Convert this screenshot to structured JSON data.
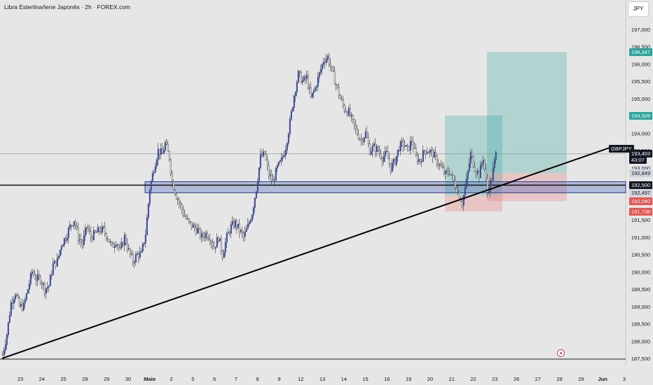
{
  "header": {
    "title": "Libra Esterlina/Iene Japonês · 2h · FOREX.com"
  },
  "price_axis": {
    "unit_label": "JPY",
    "ticks": [
      "197,000",
      "196,500",
      "196,000",
      "195,500",
      "195,000",
      "194,500",
      "194,000",
      "193,500",
      "193,000",
      "192,500",
      "192,000",
      "191,500",
      "191,000",
      "190,500",
      "190,000",
      "189,500",
      "189,000",
      "188,500",
      "188,000",
      "187,500"
    ],
    "tick_values": [
      197.0,
      196.5,
      196.0,
      195.5,
      195.0,
      194.5,
      194.0,
      193.5,
      193.0,
      192.5,
      192.0,
      191.5,
      191.0,
      190.5,
      190.0,
      189.5,
      189.0,
      188.5,
      188.0,
      187.5
    ],
    "labels": [
      {
        "text": "196,347",
        "value": 196.347,
        "bg": "#26a69a",
        "color": "#ffffff"
      },
      {
        "text": "194,509",
        "value": 194.509,
        "bg": "#26a69a",
        "color": "#ffffff"
      },
      {
        "text": "GBPJPY",
        "value": 193.55,
        "bg": "#131722",
        "color": "#ffffff"
      },
      {
        "text": "193,403",
        "value": 193.403,
        "bg": "#131722",
        "color": "#ffffff"
      },
      {
        "text": "43:07",
        "value": 193.23,
        "bg": "#131722",
        "color": "#ffffff"
      },
      {
        "text": "192,849",
        "value": 192.849,
        "bg": "#d1d4dc",
        "color": "#131722"
      },
      {
        "text": "192,500",
        "value": 192.5,
        "bg": "#131722",
        "color": "#ffffff"
      },
      {
        "text": "192,497",
        "value": 192.28,
        "bg": "#d1d4dc",
        "color": "#131722"
      },
      {
        "text": "192,040",
        "value": 192.04,
        "bg": "#ef5350",
        "color": "#ffffff"
      },
      {
        "text": "191,738",
        "value": 191.738,
        "bg": "#ef5350",
        "color": "#ffffff"
      }
    ]
  },
  "time_axis": {
    "ticks": [
      "23",
      "24",
      "25",
      "28",
      "29",
      "30",
      "Maio",
      "2",
      "5",
      "6",
      "7",
      "8",
      "9",
      "12",
      "13",
      "14",
      "15",
      "16",
      "19",
      "20",
      "21",
      "22",
      "23",
      "26",
      "27",
      "28",
      "29",
      "Jun",
      "3"
    ],
    "bold": [
      "Maio",
      "Jun"
    ]
  },
  "chart_data": {
    "type": "candlestick",
    "symbol": "GBPJPY",
    "title": "Libra Esterlina/Iene Japonês · 2h · FOREX.com",
    "ylim": [
      187.45,
      197.45
    ],
    "last_price": 193.403,
    "horizontal_levels": [
      192.5,
      193.403
    ],
    "zone": {
      "low": 192.28,
      "high": 192.6
    },
    "trendline": [
      [
        0,
        187.5
      ],
      [
        870,
        193.6
      ]
    ],
    "positions": [
      {
        "start": 632,
        "end": 714,
        "entry": 192.2,
        "target": 194.509,
        "stop": 191.738
      },
      {
        "start": 692,
        "end": 806,
        "entry": 192.849,
        "target": 196.347,
        "stop": 192.04
      }
    ],
    "colors": {
      "up": "#3a4a9a",
      "down": "#2a2a2a",
      "target_zone": "#26a69a",
      "stop_zone": "#ef5350",
      "zone_fill": "#4e66b8"
    },
    "path_anchors": [
      [
        0,
        187.6
      ],
      [
        6,
        188.2
      ],
      [
        12,
        189.1
      ],
      [
        18,
        189.4
      ],
      [
        24,
        189.0
      ],
      [
        30,
        189.0
      ],
      [
        36,
        189.5
      ],
      [
        42,
        190.0
      ],
      [
        48,
        189.8
      ],
      [
        54,
        189.8
      ],
      [
        60,
        189.5
      ],
      [
        66,
        189.6
      ],
      [
        72,
        190.2
      ],
      [
        78,
        190.3
      ],
      [
        84,
        190.8
      ],
      [
        90,
        191.0
      ],
      [
        96,
        191.3
      ],
      [
        102,
        191.5
      ],
      [
        108,
        191.0
      ],
      [
        114,
        190.8
      ],
      [
        120,
        191.3
      ],
      [
        126,
        191.0
      ],
      [
        132,
        191.1
      ],
      [
        138,
        191.2
      ],
      [
        144,
        191.2
      ],
      [
        150,
        191.0
      ],
      [
        156,
        190.7
      ],
      [
        162,
        190.9
      ],
      [
        168,
        190.6
      ],
      [
        174,
        191.0
      ],
      [
        180,
        190.6
      ],
      [
        186,
        190.3
      ],
      [
        192,
        190.5
      ],
      [
        198,
        190.5
      ],
      [
        204,
        191.1
      ],
      [
        210,
        192.4
      ],
      [
        216,
        193.0
      ],
      [
        222,
        193.5
      ],
      [
        228,
        193.4
      ],
      [
        232,
        193.7
      ],
      [
        238,
        193.3
      ],
      [
        242,
        192.6
      ],
      [
        248,
        192.2
      ],
      [
        254,
        191.9
      ],
      [
        260,
        191.6
      ],
      [
        266,
        191.4
      ],
      [
        272,
        191.3
      ],
      [
        278,
        191.2
      ],
      [
        284,
        191.0
      ],
      [
        290,
        191.1
      ],
      [
        296,
        191.0
      ],
      [
        302,
        190.7
      ],
      [
        308,
        191.0
      ],
      [
        314,
        190.5
      ],
      [
        320,
        191.0
      ],
      [
        326,
        191.3
      ],
      [
        332,
        191.4
      ],
      [
        338,
        191.2
      ],
      [
        344,
        191.0
      ],
      [
        350,
        191.3
      ],
      [
        356,
        191.7
      ],
      [
        362,
        192.4
      ],
      [
        368,
        193.3
      ],
      [
        374,
        193.4
      ],
      [
        380,
        192.8
      ],
      [
        386,
        192.6
      ],
      [
        392,
        193.0
      ],
      [
        398,
        193.2
      ],
      [
        404,
        193.6
      ],
      [
        410,
        194.3
      ],
      [
        416,
        195.1
      ],
      [
        422,
        195.7
      ],
      [
        428,
        195.5
      ],
      [
        434,
        195.6
      ],
      [
        440,
        195.0
      ],
      [
        446,
        195.3
      ],
      [
        452,
        195.7
      ],
      [
        458,
        196.1
      ],
      [
        464,
        196.2
      ],
      [
        470,
        195.8
      ],
      [
        476,
        195.4
      ],
      [
        482,
        195.0
      ],
      [
        488,
        194.7
      ],
      [
        494,
        194.6
      ],
      [
        500,
        194.3
      ],
      [
        506,
        194.0
      ],
      [
        512,
        193.8
      ],
      [
        518,
        194.0
      ],
      [
        524,
        193.5
      ],
      [
        530,
        193.6
      ],
      [
        536,
        193.5
      ],
      [
        542,
        193.3
      ],
      [
        548,
        193.4
      ],
      [
        554,
        193.0
      ],
      [
        560,
        193.2
      ],
      [
        566,
        193.6
      ],
      [
        572,
        193.7
      ],
      [
        578,
        193.5
      ],
      [
        584,
        193.8
      ],
      [
        590,
        193.3
      ],
      [
        596,
        193.2
      ],
      [
        602,
        193.5
      ],
      [
        608,
        193.5
      ],
      [
        614,
        193.4
      ],
      [
        620,
        193.2
      ],
      [
        626,
        193.0
      ],
      [
        632,
        192.8
      ],
      [
        638,
        192.9
      ],
      [
        644,
        192.6
      ],
      [
        650,
        192.3
      ],
      [
        656,
        192.0
      ],
      [
        662,
        192.6
      ],
      [
        668,
        193.4
      ],
      [
        674,
        193.0
      ],
      [
        680,
        192.8
      ],
      [
        686,
        193.3
      ],
      [
        692,
        192.3
      ],
      [
        698,
        192.7
      ],
      [
        704,
        193.4
      ]
    ]
  }
}
